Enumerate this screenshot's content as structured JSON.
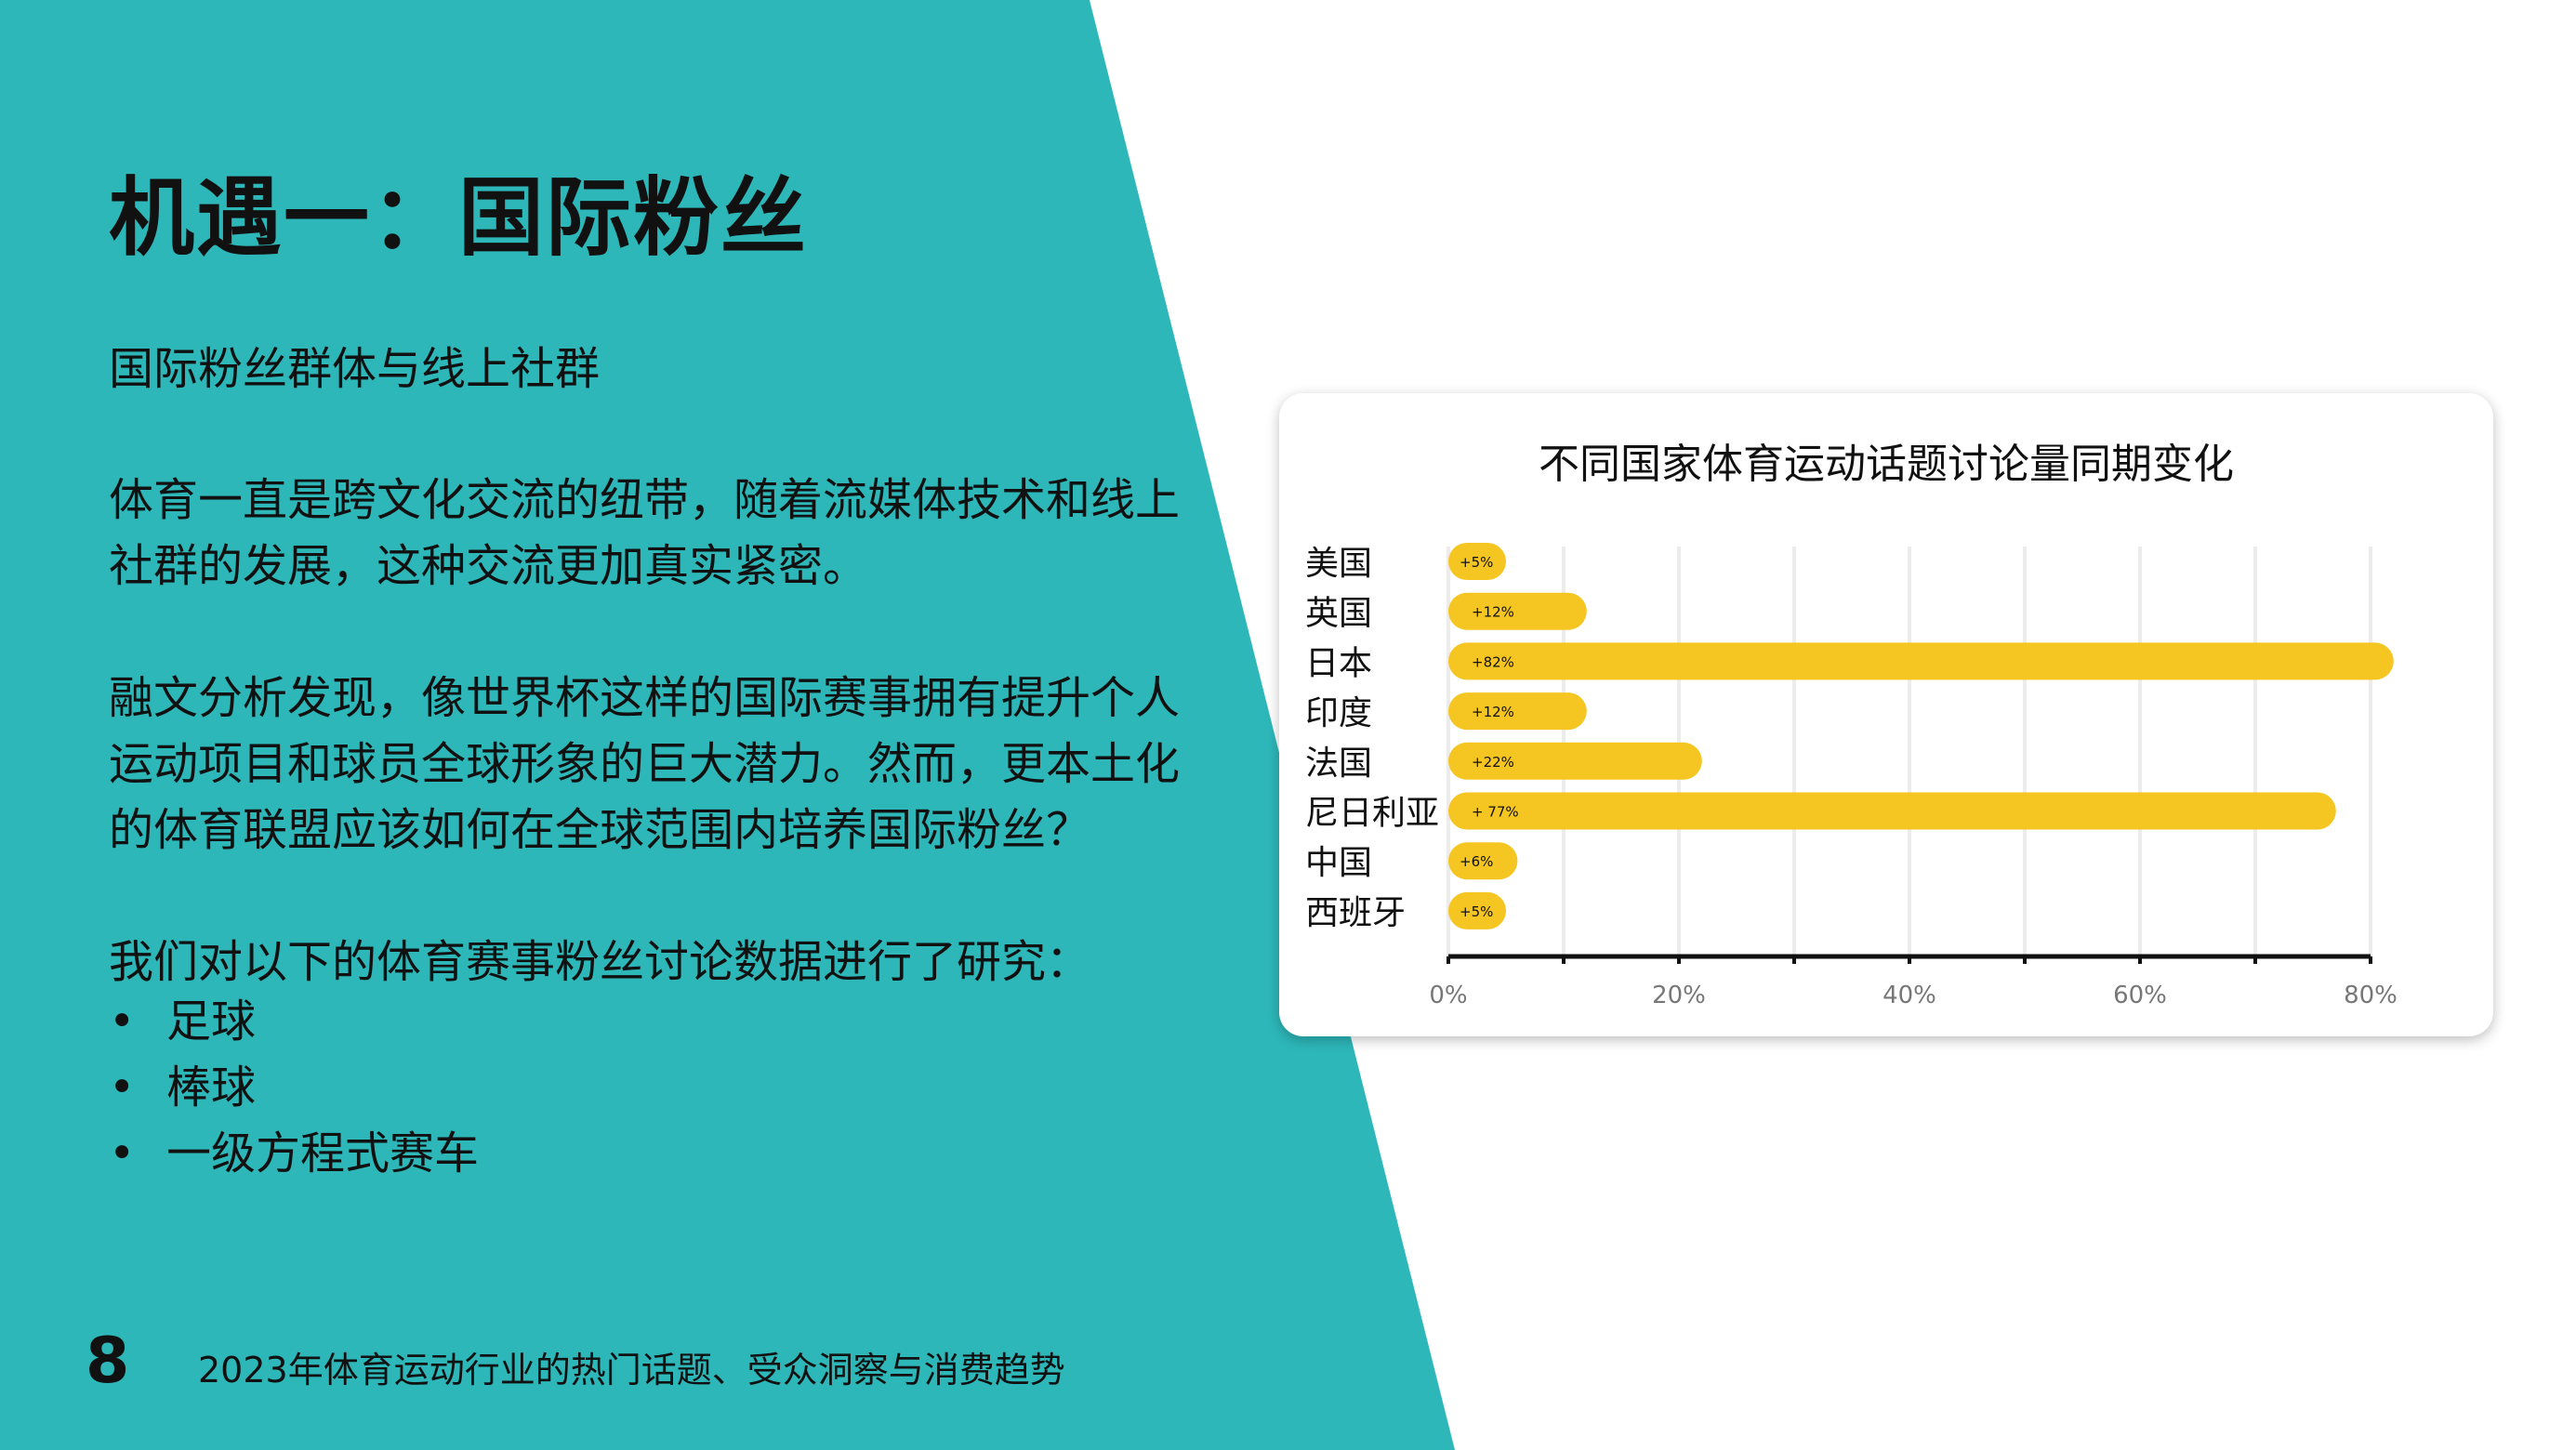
{
  "colors": {
    "background_teal": "#2DB7B9",
    "bar": "#F5C521",
    "card": "#FFFFFF"
  },
  "slide": {
    "title": "机遇一：国际粉丝",
    "subtitle": "国际粉丝群体与线上社群",
    "paragraph1": [
      "体育一直是跨文化交流的纽带，随着流媒体技术和线上",
      "社群的发展，这种交流更加真实紧密。"
    ],
    "paragraph2": [
      "融文分析发现，像世界杯这样的国际赛事拥有提升个人",
      "运动项目和球员全球形象的巨大潜力。然而，更本土化",
      "的体育联盟应该如何在全球范围内培养国际粉丝？"
    ],
    "paragraph3": "我们对以下的体育赛事粉丝讨论数据进行了研究：",
    "bullets": [
      "足球",
      "棒球",
      "一级方程式赛车"
    ],
    "bullet_symbol": "•",
    "page_number": "8",
    "footer": "2023年体育运动行业的热门话题、受众洞察与消费趋势"
  },
  "chart_data": {
    "type": "bar",
    "orientation": "horizontal",
    "title": "不同国家体育运动话题讨论量同期变化",
    "categories": [
      "美国",
      "英国",
      "日本",
      "印度",
      "法国",
      "尼日利亚",
      "中国",
      "西班牙"
    ],
    "values": [
      5,
      12,
      82,
      12,
      22,
      77,
      6,
      5
    ],
    "data_labels": [
      "+5%",
      "+12%",
      "+82%",
      "+12%",
      "+22%",
      "+ 77%",
      "+6%",
      "+5%"
    ],
    "xlim": [
      0,
      80
    ],
    "xticks": [
      0,
      20,
      40,
      60,
      80
    ],
    "xtick_labels": [
      "0%",
      "20%",
      "40%",
      "60%",
      "80%"
    ],
    "grid": true,
    "xlabel": "",
    "ylabel": ""
  }
}
